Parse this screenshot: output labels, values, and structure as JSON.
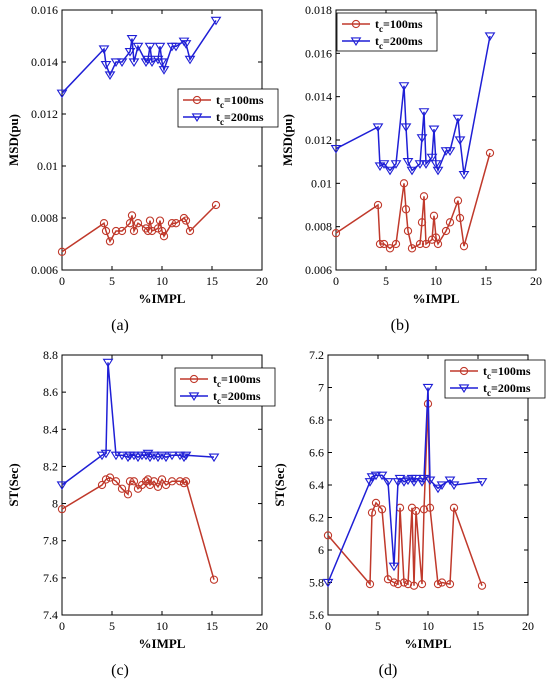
{
  "chart_data": [
    {
      "type": "line",
      "panel_label": "(a)",
      "xlabel": "%IMPL",
      "ylabel": "MSD(pu)",
      "xlim": [
        0,
        20
      ],
      "ylim": [
        0.006,
        0.016
      ],
      "xticks": [
        0,
        5,
        10,
        15,
        20
      ],
      "yticks": [
        0.006,
        0.008,
        0.01,
        0.012,
        0.014,
        0.016
      ],
      "ytick_labels": [
        "0.006",
        "0.008",
        "0.01",
        "0.012",
        "0.014",
        "0.016"
      ],
      "legend_position": "center-right",
      "series": [
        {
          "name_main": "t",
          "name_sub": "c",
          "name_rest": "=100ms",
          "color": "#c0392b",
          "marker": "circle",
          "x": [
            0,
            4.2,
            4.4,
            4.8,
            5.4,
            6.0,
            6.8,
            7.0,
            7.2,
            7.6,
            8.4,
            8.6,
            8.8,
            9.0,
            9.6,
            9.8,
            10.0,
            10.2,
            11.0,
            11.4,
            12.2,
            12.4,
            12.8,
            15.4
          ],
          "y": [
            0.0067,
            0.0078,
            0.0075,
            0.0071,
            0.0075,
            0.0075,
            0.0078,
            0.0081,
            0.0075,
            0.0078,
            0.0076,
            0.0075,
            0.0079,
            0.0075,
            0.0076,
            0.0079,
            0.0075,
            0.0073,
            0.0078,
            0.0078,
            0.008,
            0.0079,
            0.0075,
            0.0085
          ]
        },
        {
          "name_main": "t",
          "name_sub": "c",
          "name_rest": "=200ms",
          "color": "#1f1fd6",
          "marker": "triangle-down",
          "x": [
            0,
            4.2,
            4.4,
            4.8,
            5.4,
            6.0,
            6.8,
            7.0,
            7.2,
            7.6,
            8.4,
            8.6,
            8.8,
            9.0,
            9.6,
            9.8,
            10.0,
            10.2,
            11.0,
            11.4,
            12.2,
            12.4,
            12.8,
            15.4
          ],
          "y": [
            0.0128,
            0.0145,
            0.0139,
            0.0135,
            0.014,
            0.014,
            0.0144,
            0.0149,
            0.014,
            0.0146,
            0.014,
            0.0141,
            0.0146,
            0.014,
            0.0141,
            0.0146,
            0.014,
            0.0137,
            0.0146,
            0.0146,
            0.0148,
            0.0147,
            0.0141,
            0.0156
          ]
        }
      ]
    },
    {
      "type": "line",
      "panel_label": "(b)",
      "xlabel": "%IMPL",
      "ylabel": "MSD(pu)",
      "xlim": [
        0,
        20
      ],
      "ylim": [
        0.006,
        0.018
      ],
      "xticks": [
        0,
        5,
        10,
        15,
        20
      ],
      "yticks": [
        0.006,
        0.008,
        0.01,
        0.012,
        0.014,
        0.016,
        0.018
      ],
      "ytick_labels": [
        "0.006",
        "0.008",
        "0.01",
        "0.012",
        "0.014",
        "0.016",
        "0.018"
      ],
      "legend_position": "top-left",
      "series": [
        {
          "name_main": "t",
          "name_sub": "c",
          "name_rest": "=100ms",
          "color": "#c0392b",
          "marker": "circle",
          "x": [
            0,
            4.2,
            4.4,
            4.8,
            5.4,
            6.0,
            6.8,
            7.0,
            7.2,
            7.6,
            8.4,
            8.6,
            8.8,
            9.0,
            9.6,
            9.8,
            10.0,
            10.2,
            11.0,
            11.4,
            12.2,
            12.4,
            12.8,
            15.4
          ],
          "y": [
            0.0077,
            0.009,
            0.0072,
            0.0072,
            0.007,
            0.0072,
            0.01,
            0.0088,
            0.0078,
            0.007,
            0.0072,
            0.0082,
            0.0094,
            0.0072,
            0.0074,
            0.0085,
            0.0075,
            0.0072,
            0.0078,
            0.0082,
            0.0092,
            0.0084,
            0.0071,
            0.0114
          ]
        },
        {
          "name_main": "t",
          "name_sub": "c",
          "name_rest": "=200ms",
          "color": "#1f1fd6",
          "marker": "triangle-down",
          "x": [
            0,
            4.2,
            4.4,
            4.8,
            5.4,
            6.0,
            6.8,
            7.0,
            7.2,
            7.6,
            8.4,
            8.6,
            8.8,
            9.0,
            9.6,
            9.8,
            10.0,
            10.2,
            11.0,
            11.4,
            12.2,
            12.4,
            12.8,
            15.4
          ],
          "y": [
            0.0116,
            0.0126,
            0.0108,
            0.0109,
            0.0106,
            0.0109,
            0.0145,
            0.0126,
            0.011,
            0.0106,
            0.0109,
            0.0121,
            0.0133,
            0.0109,
            0.0112,
            0.0125,
            0.0109,
            0.0106,
            0.0115,
            0.0115,
            0.013,
            0.012,
            0.0104,
            0.0168
          ]
        }
      ]
    },
    {
      "type": "line",
      "panel_label": "(c)",
      "xlabel": "%IMPL",
      "ylabel": "ST(Sec)",
      "xlim": [
        0,
        20
      ],
      "ylim": [
        7.4,
        8.8
      ],
      "xticks": [
        0,
        5,
        10,
        15,
        20
      ],
      "yticks": [
        7.4,
        7.6,
        7.8,
        8.0,
        8.2,
        8.4,
        8.6,
        8.8
      ],
      "ytick_labels": [
        "7.4",
        "7.6",
        "7.8",
        "8",
        "8.2",
        "8.4",
        "8.6",
        "8.8"
      ],
      "legend_position": "top-right",
      "series": [
        {
          "name_main": "t",
          "name_sub": "c",
          "name_rest": "=100ms",
          "color": "#c0392b",
          "marker": "circle",
          "x": [
            0,
            4.0,
            4.4,
            4.8,
            5.4,
            6.0,
            6.6,
            6.8,
            7.2,
            7.6,
            8.0,
            8.4,
            8.6,
            8.8,
            9.2,
            9.6,
            10.0,
            10.4,
            11.0,
            11.8,
            12.2,
            12.4,
            15.2
          ],
          "y": [
            7.97,
            8.1,
            8.13,
            8.14,
            8.12,
            8.08,
            8.05,
            8.12,
            8.12,
            8.08,
            8.1,
            8.12,
            8.13,
            8.1,
            8.12,
            8.09,
            8.13,
            8.1,
            8.12,
            8.12,
            8.11,
            8.12,
            7.59
          ]
        },
        {
          "name_main": "t",
          "name_sub": "c",
          "name_rest": "=200ms",
          "color": "#1f1fd6",
          "marker": "triangle-down",
          "x": [
            0,
            4.0,
            4.4,
            4.6,
            5.4,
            6.0,
            6.6,
            6.8,
            7.2,
            7.6,
            8.0,
            8.4,
            8.6,
            8.8,
            9.2,
            9.6,
            10.0,
            10.4,
            11.0,
            11.8,
            12.2,
            12.4,
            15.2
          ],
          "y": [
            8.1,
            8.26,
            8.27,
            8.76,
            8.26,
            8.26,
            8.25,
            8.26,
            8.26,
            8.25,
            8.26,
            8.26,
            8.27,
            8.25,
            8.26,
            8.25,
            8.26,
            8.25,
            8.26,
            8.26,
            8.25,
            8.26,
            8.25
          ]
        }
      ]
    },
    {
      "type": "line",
      "panel_label": "(d)",
      "xlabel": "%IMPL",
      "ylabel": "ST(Sec)",
      "xlim": [
        0,
        20
      ],
      "ylim": [
        5.6,
        7.2
      ],
      "xticks": [
        0,
        5,
        10,
        15,
        20
      ],
      "yticks": [
        5.6,
        5.8,
        6.0,
        6.2,
        6.4,
        6.6,
        6.8,
        7.0,
        7.2
      ],
      "ytick_labels": [
        "5.6",
        "5.8",
        "6",
        "6.2",
        "6.4",
        "6.6",
        "6.8",
        "7",
        "7.2"
      ],
      "legend_position": "top-right",
      "series": [
        {
          "name_main": "t",
          "name_sub": "c",
          "name_rest": "=100ms",
          "color": "#c0392b",
          "marker": "circle",
          "x": [
            0,
            4.2,
            4.4,
            4.8,
            5.4,
            6.0,
            6.6,
            7.0,
            7.2,
            7.6,
            8.0,
            8.4,
            8.6,
            8.8,
            9.4,
            9.6,
            10.0,
            10.2,
            11.0,
            11.4,
            12.2,
            12.6,
            15.4
          ],
          "y": [
            6.09,
            5.79,
            6.23,
            6.29,
            6.25,
            5.82,
            5.8,
            5.79,
            6.26,
            5.8,
            5.79,
            6.26,
            5.78,
            6.24,
            5.79,
            6.25,
            6.9,
            6.26,
            5.79,
            5.8,
            5.79,
            6.26,
            5.78
          ]
        },
        {
          "name_main": "t",
          "name_sub": "c",
          "name_rest": "=200ms",
          "color": "#1f1fd6",
          "marker": "triangle-down",
          "x": [
            0,
            4.2,
            4.4,
            4.8,
            5.4,
            6.0,
            6.6,
            7.0,
            7.2,
            7.6,
            8.0,
            8.4,
            8.6,
            8.8,
            9.4,
            9.6,
            10.0,
            10.2,
            11.0,
            11.4,
            12.2,
            12.6,
            15.4
          ],
          "y": [
            5.8,
            6.42,
            6.45,
            6.46,
            6.46,
            6.42,
            5.9,
            6.42,
            6.44,
            6.42,
            6.43,
            6.44,
            6.42,
            6.44,
            6.42,
            6.44,
            7.0,
            6.43,
            6.38,
            6.4,
            6.43,
            6.4,
            6.42
          ]
        }
      ]
    }
  ]
}
